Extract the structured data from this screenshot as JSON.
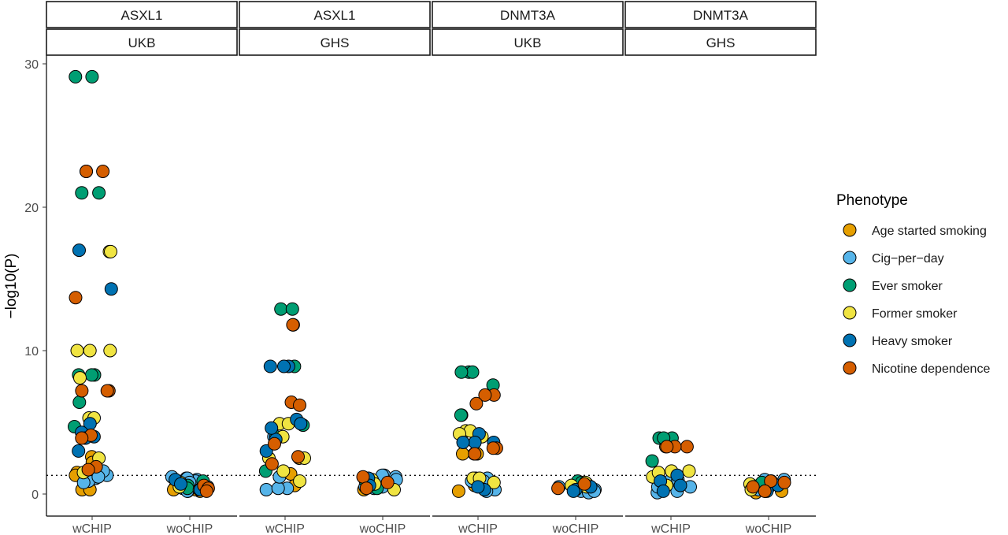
{
  "chart_data": {
    "type": "scatter",
    "ylabel": "−log10(P)",
    "xlabel": "",
    "ylim": [
      -1.5,
      30.5
    ],
    "yticks": [
      "0",
      "10",
      "20",
      "30"
    ],
    "y_tick_values": [
      0,
      10,
      20,
      30
    ],
    "categories": [
      "wCHIP",
      "woCHIP"
    ],
    "reference_line_y": 1.3,
    "legend": {
      "title": "Phenotype",
      "placement": "right",
      "entries": [
        {
          "name": "Age started smoking",
          "color": "#E69F00"
        },
        {
          "name": "Cig−per−day",
          "color": "#56B4E9"
        },
        {
          "name": "Ever smoker",
          "color": "#009E73"
        },
        {
          "name": "Former smoker",
          "color": "#F0E442"
        },
        {
          "name": "Heavy smoker",
          "color": "#0072B2"
        },
        {
          "name": "Nicotine dependence",
          "color": "#D55E00"
        }
      ]
    },
    "panels": [
      {
        "gene": "ASXL1",
        "cohort": "UKB",
        "wCHIP": {
          "Age started smoking": [
            2.6,
            1.8,
            1.5,
            0.3,
            0.3,
            2.2,
            1.3
          ],
          "Cig−per−day": [
            1.3,
            1.1,
            0.9,
            0.8,
            1.6,
            1.2
          ],
          "Ever smoker": [
            29.1,
            29.1,
            21.0,
            21.0,
            8.3,
            8.3,
            8.3,
            6.4,
            4.7
          ],
          "Former smoker": [
            16.9,
            16.9,
            10.0,
            10.0,
            10.0,
            8.1,
            5.3,
            5.3,
            2.5,
            1.5
          ],
          "Heavy smoker": [
            17.0,
            14.3,
            4.9,
            4.3,
            4.0,
            3.9,
            3.0
          ],
          "Nicotine dependence": [
            22.5,
            22.5,
            22.5,
            13.7,
            7.2,
            7.2,
            7.2,
            4.1,
            3.9,
            1.9,
            1.7
          ]
        },
        "woCHIP": {
          "Age started smoking": [
            0.2,
            0.3,
            0.5,
            0.7,
            0.2,
            0.3
          ],
          "Cig−per−day": [
            1.2,
            1.1,
            1.0,
            0.9,
            0.5,
            0.4,
            1.1,
            0.8,
            0.2
          ],
          "Ever smoker": [
            0.9,
            0.6,
            0.4
          ],
          "Former smoker": [
            0.8,
            0.5,
            0.3
          ],
          "Heavy smoker": [
            1.0,
            0.7,
            0.3
          ],
          "Nicotine dependence": [
            0.6,
            0.4,
            0.2
          ]
        }
      },
      {
        "gene": "ASXL1",
        "cohort": "GHS",
        "wCHIP": {
          "Age started smoking": [
            2.5,
            0.6,
            1.4
          ],
          "Cig−per−day": [
            0.4,
            0.3,
            0.4,
            1.2,
            4.0
          ],
          "Ever smoker": [
            12.9,
            12.9,
            8.9,
            4.0,
            4.8,
            1.6
          ],
          "Former smoker": [
            4.9,
            4.9,
            4.0,
            2.5,
            2.5,
            1.6,
            0.9
          ],
          "Heavy smoker": [
            8.9,
            8.9,
            8.9,
            5.2,
            4.9,
            3.8,
            3.0,
            4.6
          ],
          "Nicotine dependence": [
            11.8,
            11.8,
            6.4,
            6.2,
            3.5,
            2.6,
            2.1
          ]
        },
        "woCHIP": {
          "Age started smoking": [
            1.1,
            0.8,
            0.3
          ],
          "Cig−per−day": [
            1.3,
            1.2,
            1.0,
            0.9,
            0.5,
            0.5,
            0.4,
            1.3
          ],
          "Ever smoker": [
            0.9,
            0.4
          ],
          "Former smoker": [
            1.0,
            0.7,
            0.3
          ],
          "Heavy smoker": [
            1.1,
            0.6
          ],
          "Nicotine dependence": [
            1.2,
            0.8,
            0.4
          ]
        }
      },
      {
        "gene": "DNMT3A",
        "cohort": "UKB",
        "wCHIP": {
          "Age started smoking": [
            2.8,
            2.8,
            2.8,
            0.6,
            0.2,
            0.5,
            1.0
          ],
          "Cig−per−day": [
            1.1,
            0.9,
            0.3,
            0.2,
            0.9
          ],
          "Ever smoker": [
            8.5,
            8.5,
            8.5,
            7.6,
            5.5,
            5.5
          ],
          "Former smoker": [
            4.4,
            4.4,
            4.2,
            4.0,
            1.1,
            1.1,
            1.1,
            0.8
          ],
          "Heavy smoker": [
            4.2,
            3.6,
            3.6,
            3.6,
            0.3,
            0.5
          ],
          "Nicotine dependence": [
            6.9,
            6.9,
            6.3,
            3.2,
            3.2,
            2.8
          ]
        },
        "woCHIP": {
          "Age started smoking": [
            0.7,
            0.7,
            0.7,
            0.4,
            0.6
          ],
          "Cig−per−day": [
            0.3,
            0.2,
            0.1,
            0.4,
            0.5,
            0.2
          ],
          "Ever smoker": [
            0.9,
            0.8
          ],
          "Former smoker": [
            0.6,
            0.8,
            0.5
          ],
          "Heavy smoker": [
            0.3,
            0.2,
            0.5
          ],
          "Nicotine dependence": [
            0.7,
            0.4
          ]
        }
      },
      {
        "gene": "DNMT3A",
        "cohort": "GHS",
        "wCHIP": {
          "Age started smoking": [
            3.3
          ],
          "Cig−per−day": [
            0.9,
            0.5,
            0.2,
            0.1,
            1.0,
            0.5
          ],
          "Ever smoker": [
            3.9,
            3.9,
            3.9,
            2.3
          ],
          "Former smoker": [
            1.6,
            1.6,
            1.2,
            0.6,
            1.5
          ],
          "Heavy smoker": [
            1.3,
            0.9,
            0.6,
            0.2
          ],
          "Nicotine dependence": [
            3.3,
            3.3,
            3.3
          ]
        },
        "woCHIP": {
          "Age started smoking": [
            0.2,
            0.1,
            0.3,
            0.2
          ],
          "Cig−per−day": [
            1.0,
            0.9,
            0.6,
            0.5,
            0.4,
            0.3,
            1.0,
            0.7
          ],
          "Ever smoker": [
            0.8
          ],
          "Former smoker": [
            0.7,
            0.3
          ],
          "Heavy smoker": [
            0.6,
            0.2
          ],
          "Nicotine dependence": [
            0.9,
            0.8,
            0.5,
            0.2
          ]
        }
      }
    ]
  }
}
